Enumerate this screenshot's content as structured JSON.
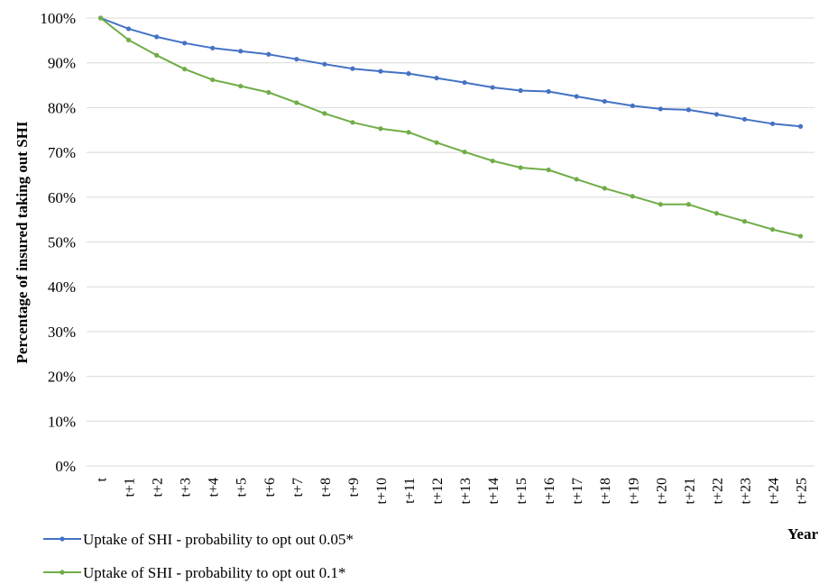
{
  "chart_data": {
    "type": "line",
    "ylabel": "Percentage of insured taking out SHI",
    "xlabel": "Year",
    "ylim": [
      0,
      100
    ],
    "y_ticks": [
      "0%",
      "10%",
      "20%",
      "30%",
      "40%",
      "50%",
      "60%",
      "70%",
      "80%",
      "90%",
      "100%"
    ],
    "categories": [
      "t",
      "t+1",
      "t+2",
      "t+3",
      "t+4",
      "t+5",
      "t+6",
      "t+7",
      "t+8",
      "t+9",
      "t+10",
      "t+11",
      "t+12",
      "t+13",
      "t+14",
      "t+15",
      "t+16",
      "t+17",
      "t+18",
      "t+19",
      "t+20",
      "t+21",
      "t+22",
      "t+23",
      "t+24",
      "t+25"
    ],
    "grid": true,
    "legend_position": "bottom-left",
    "series": [
      {
        "name": "Uptake of SHI - probability to opt out 0.05*",
        "color": "#4472C4",
        "values": [
          100,
          97.6,
          95.8,
          94.4,
          93.3,
          92.6,
          91.9,
          90.8,
          89.7,
          88.7,
          88.1,
          87.6,
          86.6,
          85.6,
          84.5,
          83.8,
          83.6,
          82.5,
          81.4,
          80.4,
          79.7,
          79.5,
          78.5,
          77.4,
          76.4,
          75.8
        ]
      },
      {
        "name": "Uptake of SHI - probability to opt out 0.1*",
        "color": "#70AD47",
        "values": [
          100,
          95.1,
          91.7,
          88.6,
          86.2,
          84.8,
          83.4,
          81.1,
          78.7,
          76.7,
          75.3,
          74.5,
          72.2,
          70.1,
          68.1,
          66.6,
          66.1,
          64.0,
          62.0,
          60.2,
          58.4,
          58.4,
          56.4,
          54.6,
          52.8,
          51.3
        ]
      }
    ]
  }
}
